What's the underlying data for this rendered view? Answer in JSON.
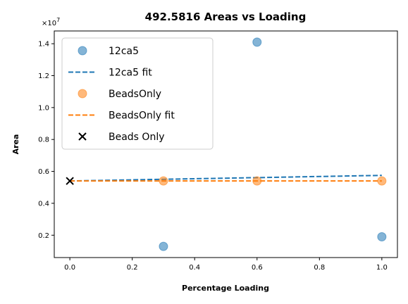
{
  "chart_data": {
    "type": "scatter",
    "title": "492.5816 Areas vs Loading",
    "xlabel": "Percentage Loading",
    "ylabel": "Area",
    "y_multiplier_label": "×10",
    "y_multiplier_exp": "7",
    "xlim": [
      -0.05,
      1.05
    ],
    "ylim": [
      600000,
      14800000
    ],
    "y_scale": 10000000,
    "x_ticks": [
      0.0,
      0.2,
      0.4,
      0.6,
      0.8,
      1.0
    ],
    "x_tick_labels": [
      "0.0",
      "0.2",
      "0.4",
      "0.6",
      "0.8",
      "1.0"
    ],
    "y_ticks": [
      2000000,
      4000000,
      6000000,
      8000000,
      10000000,
      12000000,
      14000000
    ],
    "y_tick_labels": [
      "0.2",
      "0.4",
      "0.6",
      "0.8",
      "1.0",
      "1.2",
      "1.4"
    ],
    "grid": false,
    "legend_position": "top-left",
    "series": [
      {
        "name": "12ca5",
        "kind": "scatter",
        "color": "#1f77b4",
        "x": [
          0.3,
          0.6,
          1.0
        ],
        "y": [
          1300000,
          14100000,
          1900000
        ]
      },
      {
        "name": "12ca5 fit",
        "kind": "line",
        "dash": true,
        "color": "#1f77b4",
        "x": [
          0.0,
          1.0
        ],
        "y": [
          5400000,
          5750000
        ]
      },
      {
        "name": "BeadsOnly",
        "kind": "scatter",
        "color": "#ff7f0e",
        "x": [
          0.3,
          0.6,
          1.0
        ],
        "y": [
          5400000,
          5400000,
          5400000
        ]
      },
      {
        "name": "BeadsOnly fit",
        "kind": "line",
        "dash": true,
        "color": "#ff7f0e",
        "x": [
          0.0,
          1.0
        ],
        "y": [
          5400000,
          5400000
        ]
      },
      {
        "name": "Beads Only",
        "kind": "x-marker",
        "color": "#000000",
        "x": [
          0.0
        ],
        "y": [
          5400000
        ]
      }
    ]
  }
}
